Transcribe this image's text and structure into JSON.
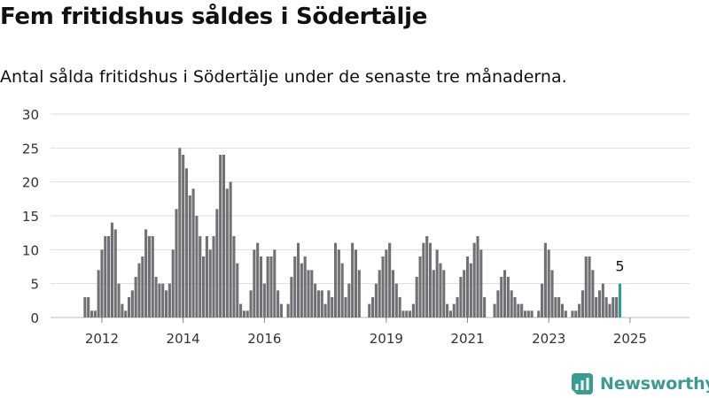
{
  "header": {
    "title": "Fem fritidshus såldes i Södertälje",
    "subtitle": "Antal sålda fritidshus i Södertälje under de senaste tre månaderna."
  },
  "brand": {
    "name": "Newsworthy",
    "icon": "newsworthy-logo-icon",
    "color": "#3a9b93"
  },
  "colors": {
    "bar": "#717075",
    "highlight": "#2a9d96",
    "grid": "#dddddd"
  },
  "chart_data": {
    "type": "bar",
    "title": "Fem fritidshus såldes i Södertälje",
    "subtitle": "Antal sålda fritidshus i Södertälje under de senaste tre månaderna.",
    "xlabel": "",
    "ylabel": "",
    "ylim": [
      0,
      30
    ],
    "yticks": [
      0,
      5,
      10,
      15,
      20,
      25,
      30
    ],
    "grid": true,
    "legend": "none",
    "x_start": "2011-12",
    "x_interval": "month",
    "xtick_labels": [
      {
        "label": "2012",
        "x": "2012-06"
      },
      {
        "label": "2014",
        "x": "2014-06"
      },
      {
        "label": "2016",
        "x": "2016-06"
      },
      {
        "label": "2019",
        "x": "2019-06"
      },
      {
        "label": "2021",
        "x": "2021-06"
      },
      {
        "label": "2023",
        "x": "2023-06"
      },
      {
        "label": "2025",
        "x": "2025-06"
      }
    ],
    "values": [
      0,
      3,
      3,
      1,
      1,
      7,
      10,
      12,
      12,
      14,
      13,
      5,
      2,
      1,
      3,
      4,
      6,
      8,
      9,
      13,
      12,
      12,
      6,
      5,
      5,
      4,
      5,
      10,
      16,
      25,
      24,
      22,
      18,
      19,
      15,
      12,
      9,
      12,
      10,
      12,
      16,
      24,
      24,
      19,
      20,
      12,
      8,
      2,
      1,
      1,
      4,
      10,
      11,
      9,
      5,
      9,
      9,
      10,
      4,
      2,
      0,
      2,
      6,
      9,
      11,
      8,
      9,
      7,
      7,
      5,
      4,
      4,
      2,
      4,
      3,
      11,
      10,
      8,
      3,
      5,
      11,
      10,
      7,
      0,
      0,
      2,
      3,
      5,
      7,
      9,
      10,
      11,
      7,
      5,
      3,
      1,
      1,
      1,
      2,
      6,
      9,
      11,
      12,
      11,
      7,
      10,
      8,
      7,
      2,
      1,
      2,
      3,
      6,
      7,
      9,
      8,
      11,
      12,
      10,
      3,
      0,
      0,
      2,
      4,
      6,
      7,
      6,
      4,
      3,
      2,
      2,
      1,
      1,
      1,
      0,
      1,
      5,
      11,
      10,
      7,
      3,
      3,
      2,
      1,
      0,
      1,
      1,
      2,
      4,
      9,
      9,
      7,
      3,
      4,
      5,
      3,
      2,
      3,
      3,
      5
    ],
    "highlight_last": true,
    "annotation": {
      "label": "5"
    }
  }
}
